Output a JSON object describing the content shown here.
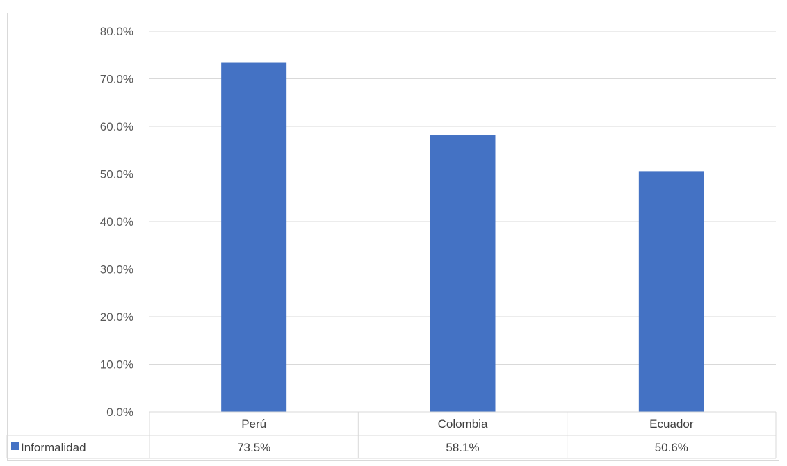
{
  "chart_data": {
    "type": "bar",
    "categories": [
      "Perú",
      "Colombia",
      "Ecuador"
    ],
    "series": [
      {
        "name": "Informalidad",
        "values": [
          73.5,
          58.1,
          50.6
        ],
        "color": "#4472C4"
      }
    ],
    "value_labels": [
      "73.5%",
      "58.1%",
      "50.6%"
    ],
    "y_ticks": [
      "0.0%",
      "10.0%",
      "20.0%",
      "30.0%",
      "40.0%",
      "50.0%",
      "60.0%",
      "70.0%",
      "80.0%"
    ],
    "ylim": [
      0,
      80
    ],
    "grid": true,
    "legend": "data-table",
    "gridline_color": "#d9d9d9"
  }
}
